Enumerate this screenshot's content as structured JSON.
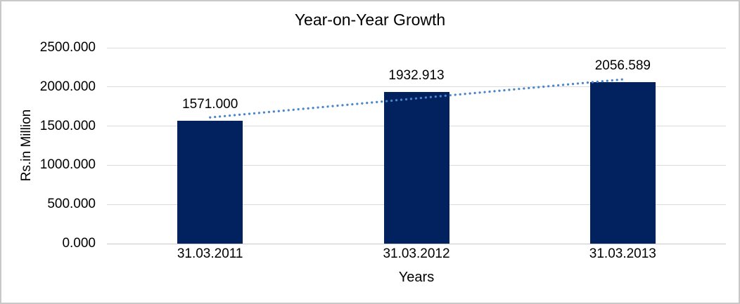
{
  "chart_data": {
    "type": "bar",
    "title": "Year-on-Year Growth",
    "xlabel": "Years",
    "ylabel": "Rs.in Million",
    "categories": [
      "31.03.2011",
      "31.03.2012",
      "31.03.2013"
    ],
    "values": [
      1571.0,
      1932.913,
      2056.589
    ],
    "data_labels": [
      "1571.000",
      "1932.913",
      "2056.589"
    ],
    "y_ticks": [
      "0.000",
      "500.000",
      "1000.000",
      "1500.000",
      "2000.000",
      "2500.000"
    ],
    "ylim": [
      0,
      2500
    ],
    "grid": "horizontal",
    "legend": "none",
    "trendline": {
      "type": "linear",
      "style": "dotted"
    }
  },
  "colors": {
    "bar": "#02215f",
    "trendline": "#4a86c8",
    "gridline": "#dadada",
    "axis_line": "#c9c9c9",
    "text": "#000000",
    "border": "#c8c8c8",
    "background": "#ffffff"
  }
}
